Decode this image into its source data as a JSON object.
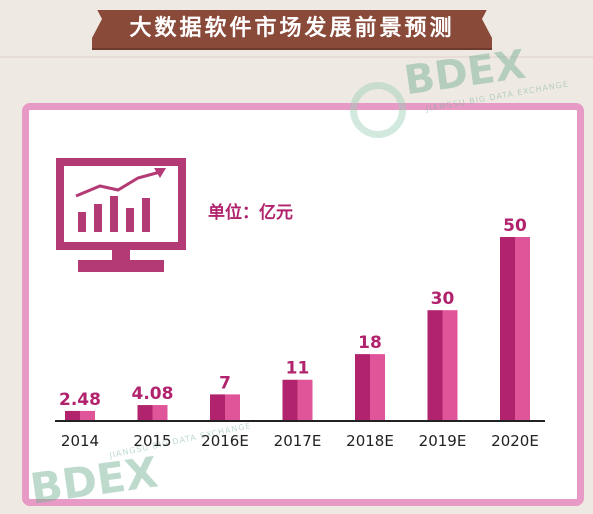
{
  "title": "大数据软件市场发展前景预测",
  "unit_label": "单位：亿元",
  "watermark": {
    "brand": "BDEX",
    "subtitle": "JIANGSU BIG DATA EXCHANGE"
  },
  "colors": {
    "banner": "#8a4a3a",
    "border": "#e79ac5",
    "bar_dark": "#b1236d",
    "bar_light": "#e0559a",
    "monitor": "#b33a75"
  },
  "chart_data": {
    "type": "bar",
    "categories": [
      "2014",
      "2015",
      "2016E",
      "2017E",
      "2018E",
      "2019E",
      "2020E"
    ],
    "values": [
      2.48,
      4.08,
      7,
      11,
      18,
      30,
      50
    ],
    "value_labels": [
      "2.48",
      "4.08",
      "7",
      "11",
      "18",
      "30",
      "50"
    ],
    "ylim": [
      0,
      50
    ],
    "grid": false,
    "legend": "none"
  }
}
